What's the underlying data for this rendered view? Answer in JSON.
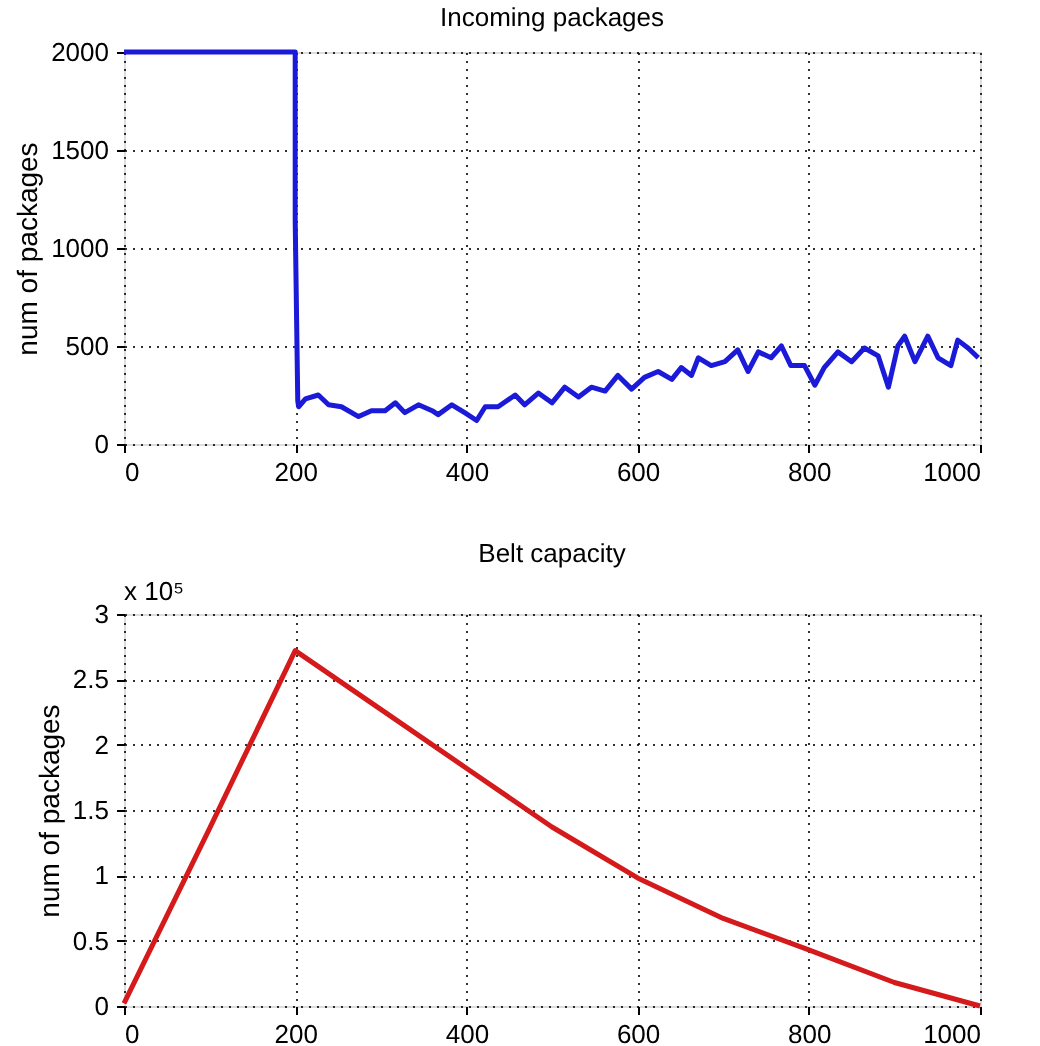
{
  "chart_data": [
    {
      "type": "line",
      "title": "Incoming packages",
      "ylabel": "num of packages",
      "xlim": [
        0,
        1000
      ],
      "xticks": [
        0,
        200,
        400,
        600,
        800,
        1000
      ],
      "ylim": [
        0,
        2000
      ],
      "yticks": [
        0,
        500,
        1000,
        1500,
        2000
      ],
      "grid": true,
      "line_style": "solid",
      "marker": "none",
      "x": [
        0,
        200,
        200,
        203,
        204,
        212,
        227,
        239,
        254,
        274,
        289,
        305,
        317,
        328,
        344,
        360,
        367,
        383,
        398,
        412,
        422,
        437,
        457,
        468,
        484,
        500,
        515,
        531,
        546,
        562,
        577,
        593,
        608,
        624,
        640,
        651,
        663,
        671,
        686,
        702,
        717,
        729,
        741,
        756,
        768,
        779,
        795,
        807,
        818,
        834,
        850,
        865,
        881,
        893,
        904,
        912,
        924,
        939,
        951,
        966,
        974,
        986,
        998
      ],
      "series": [
        {
          "color": "#1a1ad8",
          "values": [
            2000,
            2000,
            1140,
            220,
            190,
            230,
            250,
            200,
            190,
            140,
            170,
            170,
            210,
            160,
            200,
            170,
            150,
            200,
            160,
            120,
            190,
            190,
            250,
            200,
            260,
            210,
            290,
            240,
            290,
            270,
            350,
            280,
            340,
            370,
            330,
            390,
            350,
            440,
            400,
            420,
            480,
            370,
            470,
            440,
            500,
            400,
            400,
            300,
            390,
            470,
            420,
            490,
            450,
            290,
            500,
            550,
            420,
            550,
            440,
            400,
            530,
            490,
            440
          ]
        }
      ]
    },
    {
      "type": "line",
      "title": "Belt capacity",
      "ylabel": "num of packages",
      "annotations": [
        "x 10⁵"
      ],
      "xlim": [
        0,
        1000
      ],
      "xticks": [
        0,
        200,
        400,
        600,
        800,
        1000
      ],
      "ylim": [
        0,
        3
      ],
      "yticks": [
        0,
        0.5,
        1,
        1.5,
        2,
        2.5,
        3
      ],
      "grid": true,
      "line_style": "solid",
      "marker": "none",
      "x": [
        0,
        100,
        200,
        300,
        400,
        500,
        600,
        700,
        800,
        900,
        1000
      ],
      "series": [
        {
          "color": "#d41a1a",
          "values": [
            0.02,
            1.36,
            2.72,
            2.27,
            1.82,
            1.37,
            0.98,
            0.67,
            0.43,
            0.18,
            0
          ]
        }
      ]
    }
  ]
}
